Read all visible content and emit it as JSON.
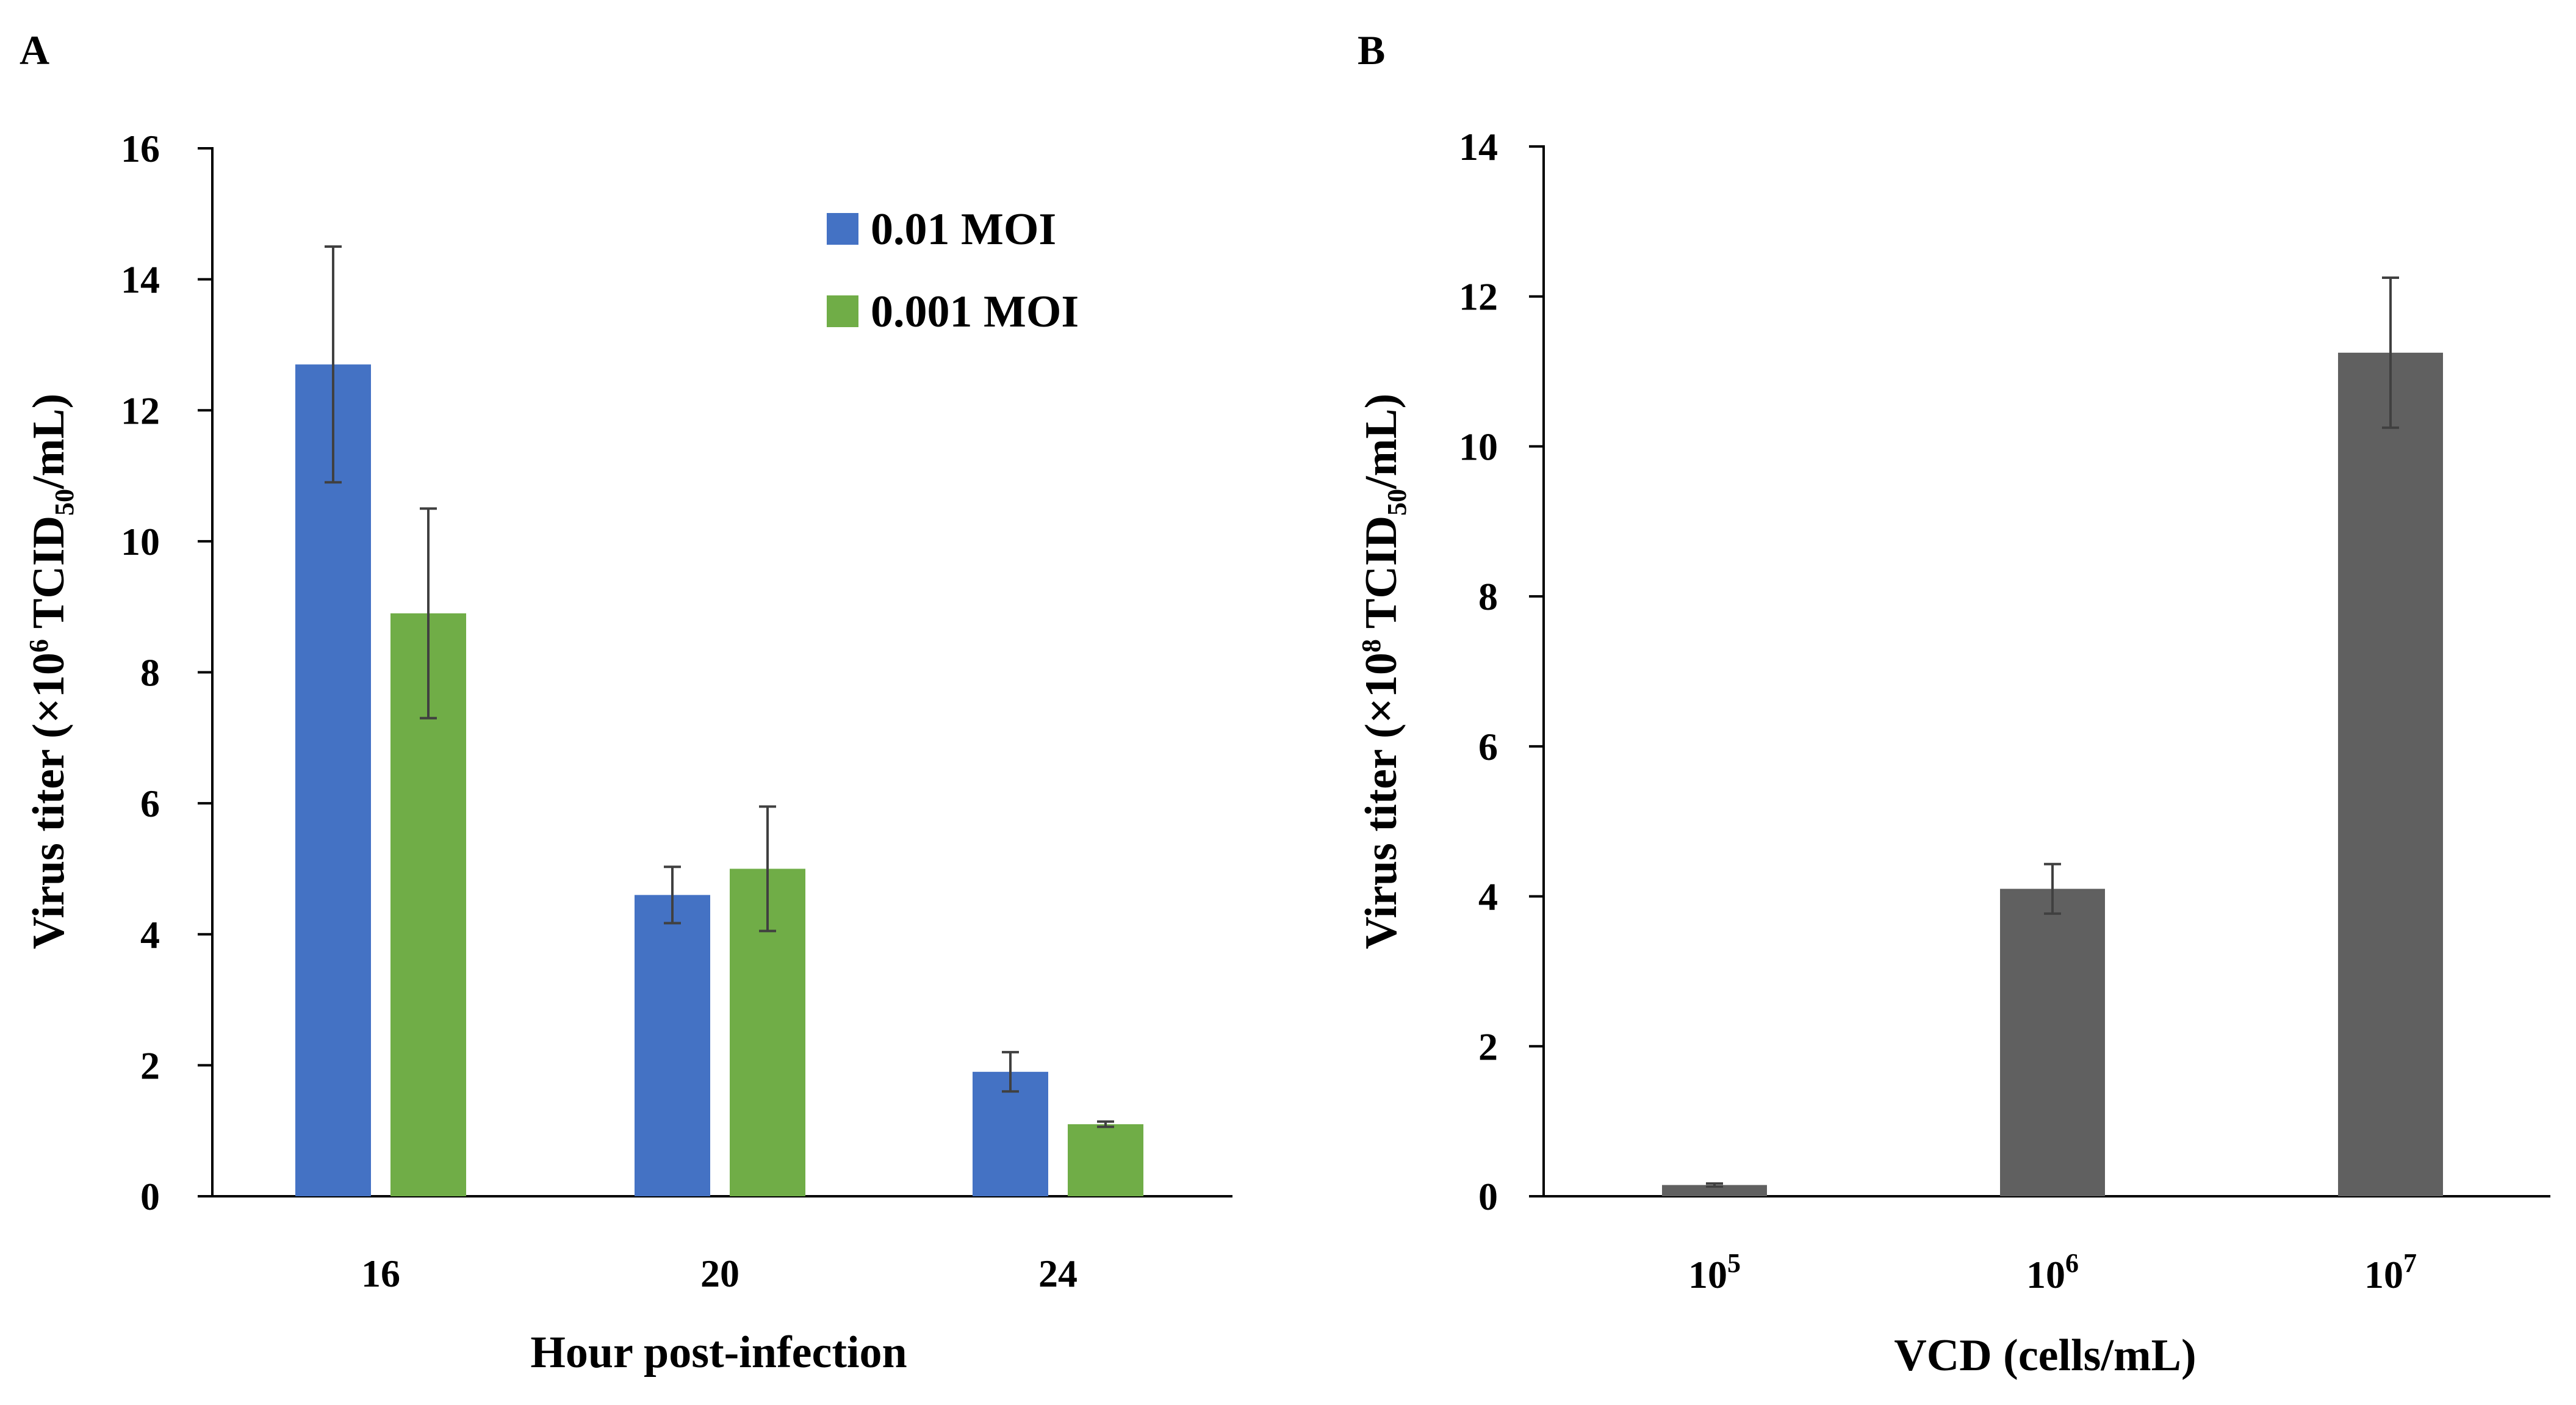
{
  "chart_data": [
    {
      "panel": "A",
      "type": "bar",
      "xlabel": "Hour post-infection",
      "ylabel": {
        "pre": "Virus titer (×10",
        "exp": "6",
        "mid": " TCID",
        "sub": "50",
        "post": "/mL)"
      },
      "ylim": [
        0,
        16
      ],
      "yticks": [
        0,
        2,
        4,
        6,
        8,
        10,
        12,
        14,
        16
      ],
      "categories": [
        "16",
        "20",
        "24"
      ],
      "series": [
        {
          "name": "0.01 MOI",
          "color": "#4472C4",
          "values": [
            12.7,
            4.6,
            1.9
          ],
          "errors": [
            1.8,
            0.43,
            0.3
          ]
        },
        {
          "name": "0.001 MOI",
          "color": "#70AD47",
          "values": [
            8.9,
            5.0,
            1.1
          ],
          "errors": [
            1.6,
            0.95,
            0.04
          ]
        }
      ],
      "legend": "top-right"
    },
    {
      "panel": "B",
      "type": "bar",
      "xlabel": "VCD (cells/mL)",
      "ylabel": {
        "pre": "Virus titer (×10",
        "exp": "8",
        "mid": " TCID",
        "sub": "50",
        "post": "/mL)"
      },
      "ylim": [
        0,
        14
      ],
      "yticks": [
        0,
        2,
        4,
        6,
        8,
        10,
        12,
        14
      ],
      "categories": [
        {
          "base": "10",
          "exp": "5"
        },
        {
          "base": "10",
          "exp": "6"
        },
        {
          "base": "10",
          "exp": "7"
        }
      ],
      "series": [
        {
          "name": "VCD",
          "color": "#606060",
          "values": [
            0.15,
            4.1,
            11.25
          ],
          "errors": [
            0.02,
            0.33,
            1.0
          ]
        }
      ]
    }
  ]
}
